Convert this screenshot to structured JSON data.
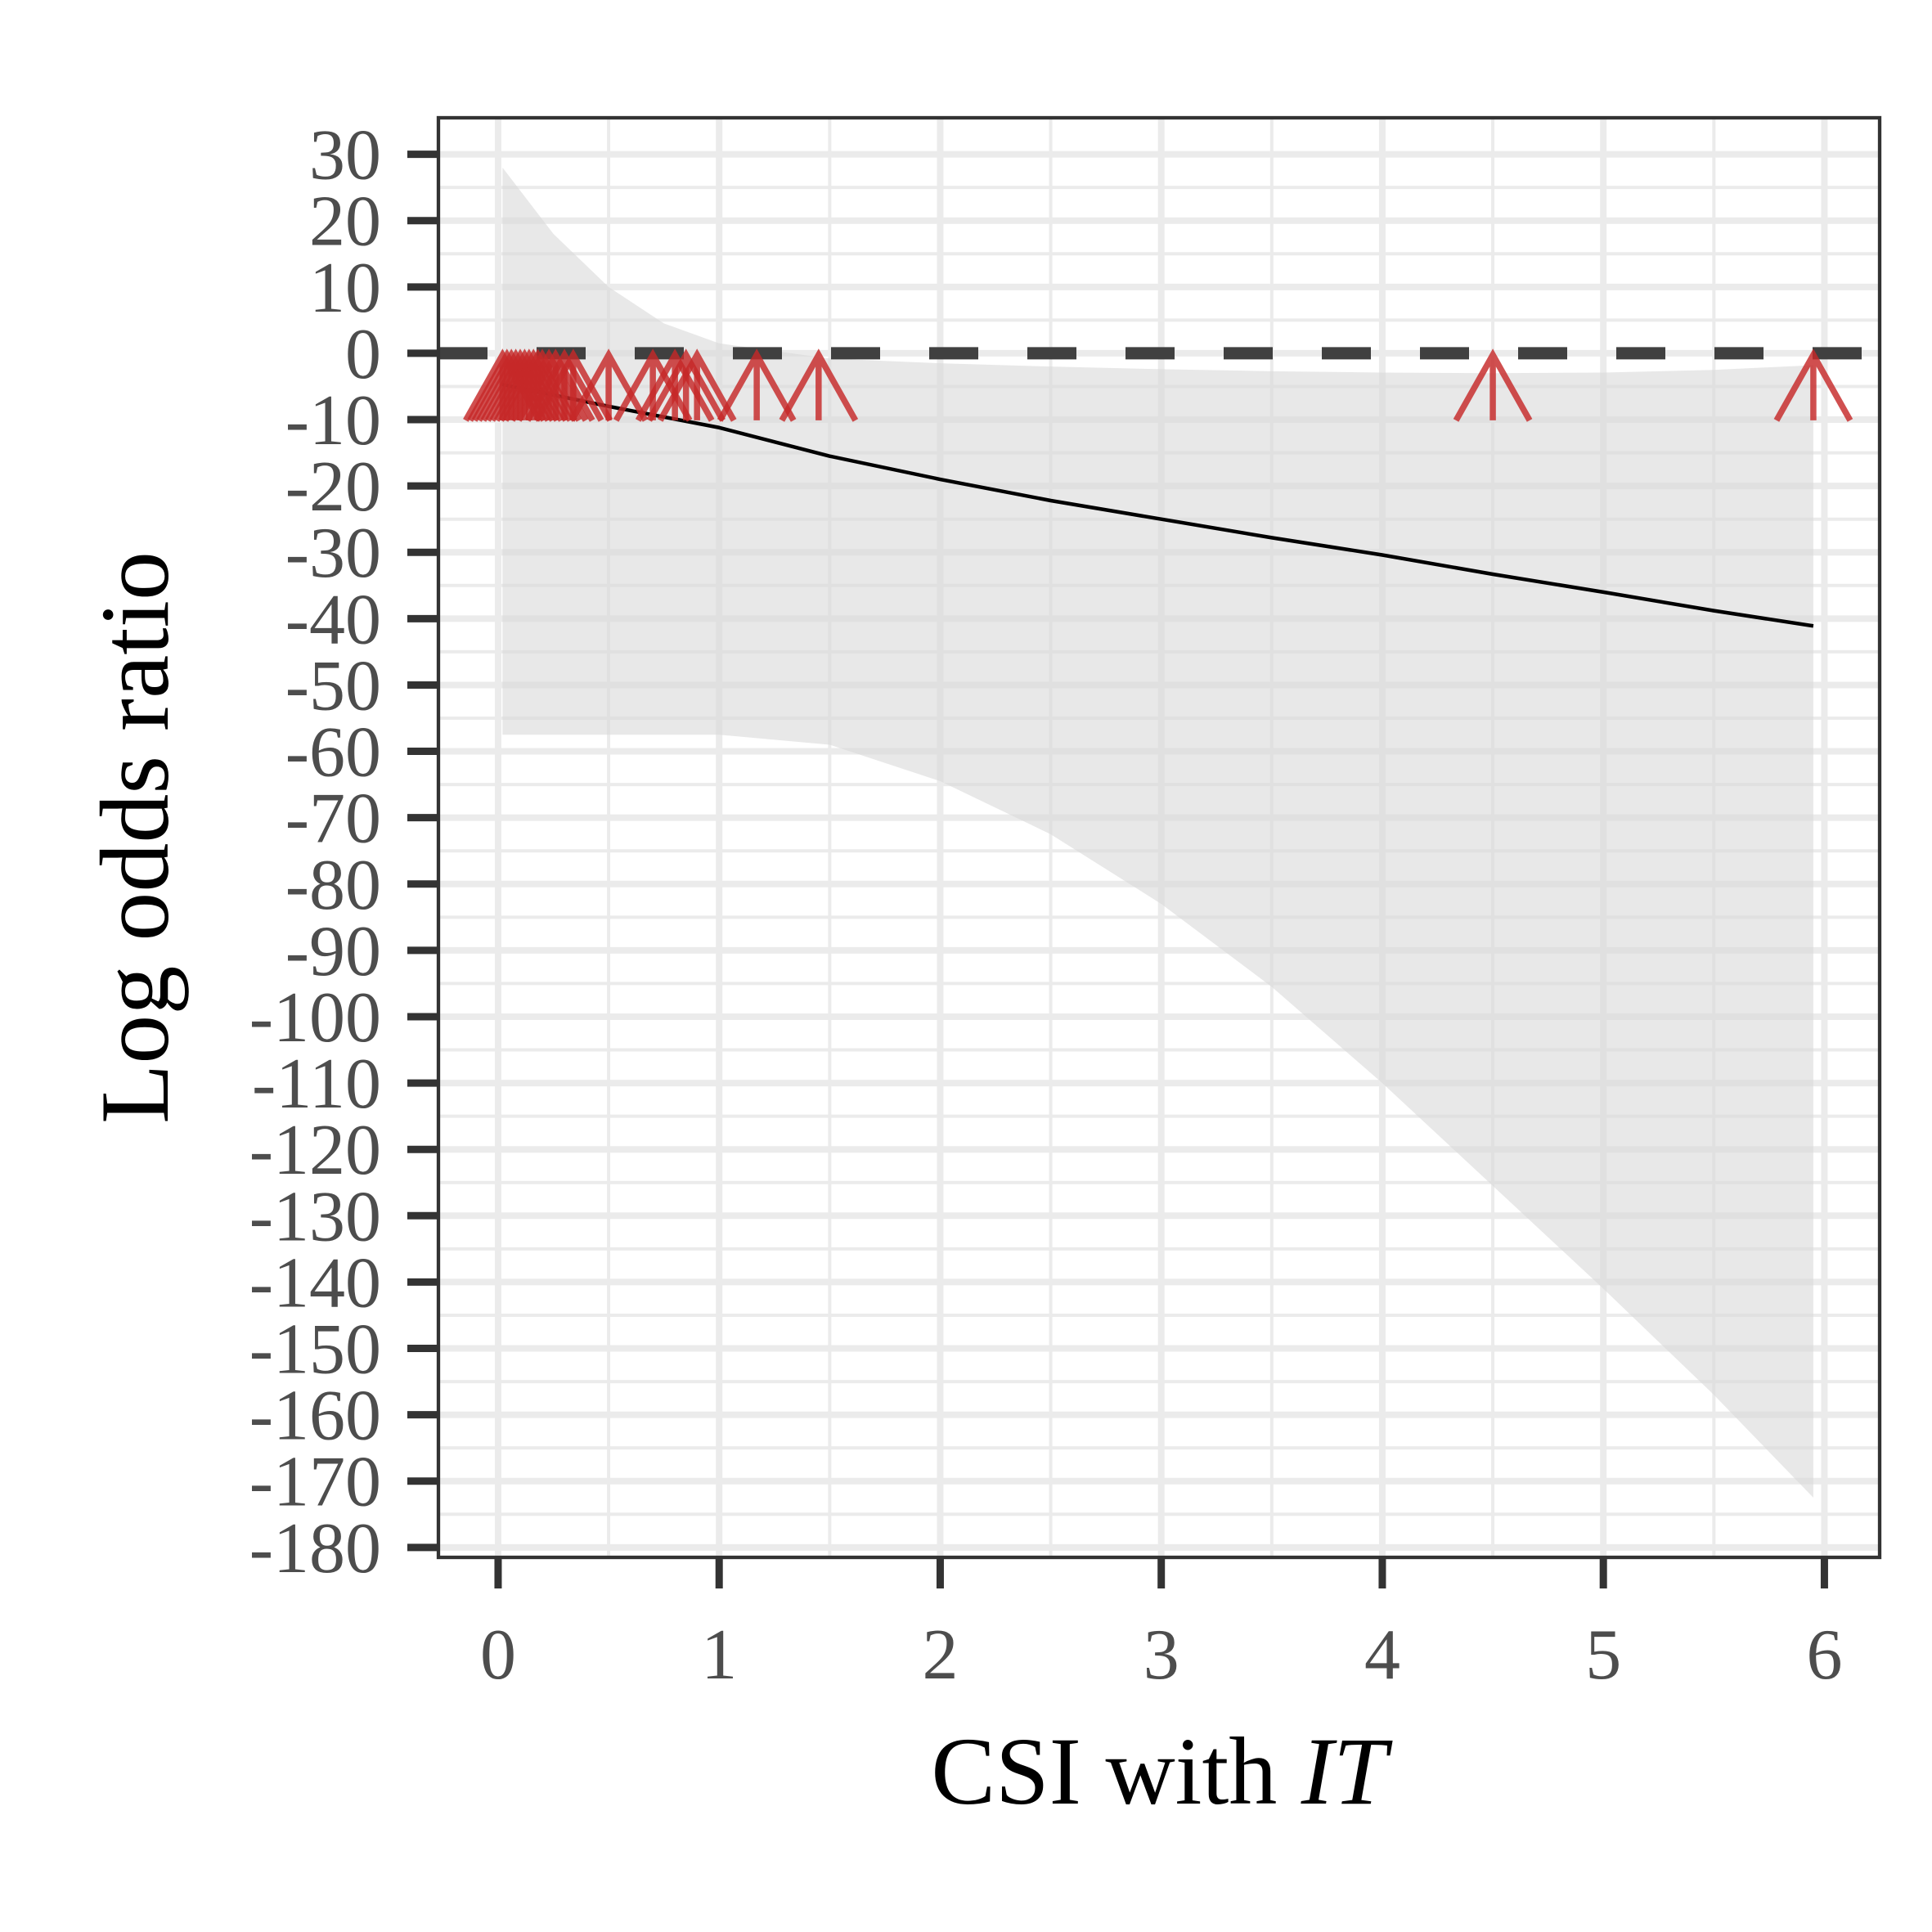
{
  "chart_data": {
    "type": "line",
    "title": "",
    "xlabel_main": "CSI with ",
    "xlabel_italic": "IT",
    "ylabel": "Log odds ratio",
    "xlim": [
      -0.27,
      6.25
    ],
    "ylim": [
      -181.5,
      35.5
    ],
    "x_ticks": [
      0,
      1,
      2,
      3,
      4,
      5,
      6
    ],
    "x_tick_labels": [
      "0",
      "1",
      "2",
      "3",
      "4",
      "5",
      "6"
    ],
    "y_ticks": [
      30,
      20,
      10,
      0,
      -10,
      -20,
      -30,
      -40,
      -50,
      -60,
      -70,
      -80,
      -90,
      -100,
      -110,
      -120,
      -130,
      -140,
      -150,
      -160,
      -170,
      -180
    ],
    "y_tick_labels": [
      "30",
      "20",
      "10",
      "0",
      "-10",
      "-20",
      "-30",
      "-40",
      "-50",
      "-60",
      "-70",
      "-80",
      "-90",
      "-100",
      "-110",
      "-120",
      "-130",
      "-140",
      "-150",
      "-160",
      "-170",
      "-180"
    ],
    "grid": true,
    "reference_line": {
      "y": 0,
      "style": "dashed",
      "color": "#404040"
    },
    "series": [
      {
        "type": "line",
        "color": "#000000",
        "x": [
          0.02,
          0.5,
          1.0,
          1.5,
          2.0,
          2.5,
          3.0,
          3.5,
          4.0,
          4.5,
          5.0,
          5.5,
          5.95
        ],
        "y": [
          -4.7,
          -8.0,
          -11.2,
          -15.5,
          -19.0,
          -22.2,
          -25.0,
          -27.8,
          -30.4,
          -33.3,
          -36.0,
          -38.8,
          -41.1
        ]
      }
    ],
    "confidence_band": {
      "color": "#d9d9d9",
      "x": [
        0.02,
        0.25,
        0.5,
        0.75,
        1.0,
        1.5,
        2.0,
        2.5,
        3.0,
        3.5,
        4.0,
        4.5,
        5.0,
        5.5,
        5.95
      ],
      "upper": [
        28.0,
        18.0,
        10.0,
        4.5,
        1.5,
        -0.8,
        -1.5,
        -2.0,
        -2.4,
        -2.7,
        -2.9,
        -3.0,
        -2.9,
        -2.5,
        -1.8
      ],
      "lower": [
        -57.5,
        -57.5,
        -57.5,
        -57.5,
        -57.5,
        -59.0,
        -64.5,
        -72.5,
        -83.0,
        -95.5,
        -110.0,
        -125.5,
        -141.0,
        -157.0,
        -172.5
      ]
    },
    "rug_markers": {
      "shape": "up-arrow",
      "color": "#c62828",
      "y": 0,
      "x": [
        0.02,
        0.04,
        0.06,
        0.08,
        0.1,
        0.12,
        0.14,
        0.16,
        0.18,
        0.2,
        0.23,
        0.26,
        0.3,
        0.34,
        0.5,
        0.7,
        0.8,
        0.85,
        0.9,
        1.17,
        1.45,
        4.5,
        5.95
      ]
    }
  }
}
